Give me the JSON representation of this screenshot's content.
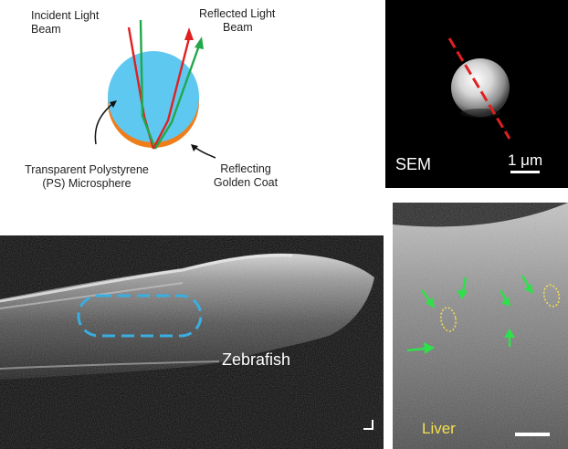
{
  "diagram": {
    "incident_label_line1": "Incident Light",
    "incident_label_line2": "Beam",
    "reflected_label_line1": "Reflected Light",
    "reflected_label_line2": "Beam",
    "microsphere_label_line1": "Transparent Polystyrene",
    "microsphere_label_line2": "(PS)  Microsphere",
    "coat_label_line1": "Reflecting",
    "coat_label_line2": "Golden Coat",
    "colors": {
      "sphere": "#5ec8f0",
      "coat": "#ef7d1a",
      "incident_red": "#e02020",
      "incident_green": "#22a84a"
    }
  },
  "sem": {
    "label": "SEM",
    "scale_label": "1 μm"
  },
  "zebrafish": {
    "label": "Zebrafish",
    "outline_color": "#3aaee0"
  },
  "liver": {
    "label": "Liver",
    "label_color": "#f5e050",
    "arrow_color": "#2fe04a"
  }
}
